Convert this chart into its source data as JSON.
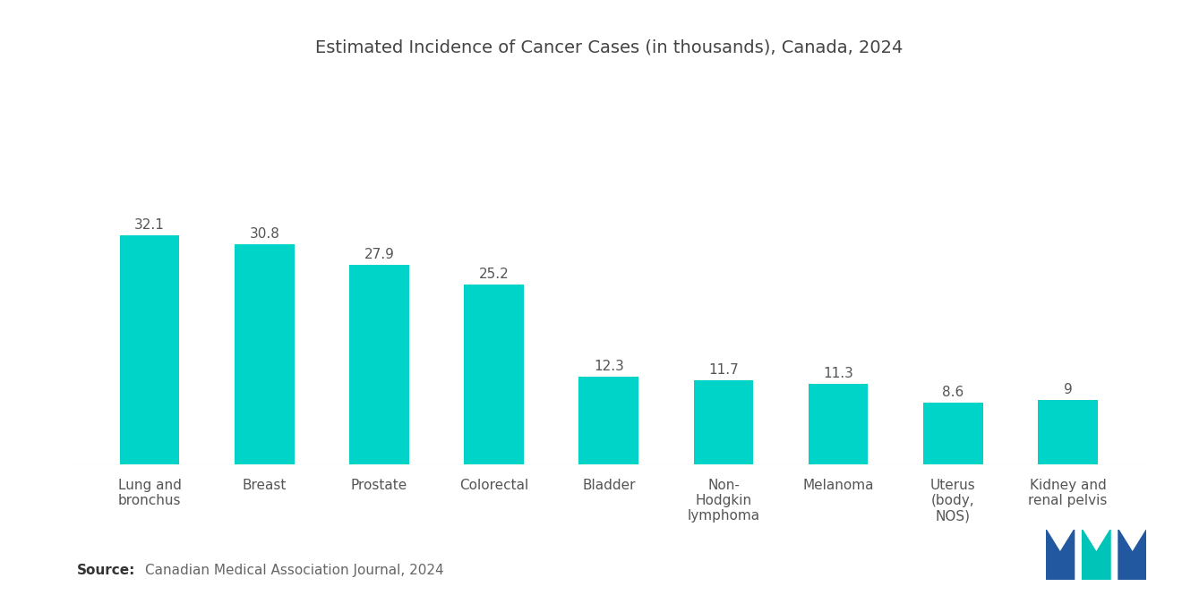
{
  "title": "Estimated Incidence of Cancer Cases (in thousands), Canada, 2024",
  "categories": [
    "Lung and\nbronchus",
    "Breast",
    "Prostate",
    "Colorectal",
    "Bladder",
    "Non-\nHodgkin\nlymphoma",
    "Melanoma",
    "Uterus\n(body,\nNOS)",
    "Kidney and\nrenal pelvis"
  ],
  "values": [
    32.1,
    30.8,
    27.9,
    25.2,
    12.3,
    11.7,
    11.3,
    8.6,
    9
  ],
  "bar_color": "#00D4C8",
  "value_labels": [
    "32.1",
    "30.8",
    "27.9",
    "25.2",
    "12.3",
    "11.7",
    "11.3",
    "8.6",
    "9"
  ],
  "source_bold": "Source:",
  "source_text": "Canadian Medical Association Journal, 2024",
  "title_fontsize": 14,
  "label_fontsize": 11,
  "value_fontsize": 11,
  "source_fontsize": 11,
  "background_color": "#ffffff",
  "ylim": [
    0,
    55
  ],
  "bar_width": 0.52,
  "logo_blue": "#2158A0",
  "logo_teal": "#00C4B8"
}
